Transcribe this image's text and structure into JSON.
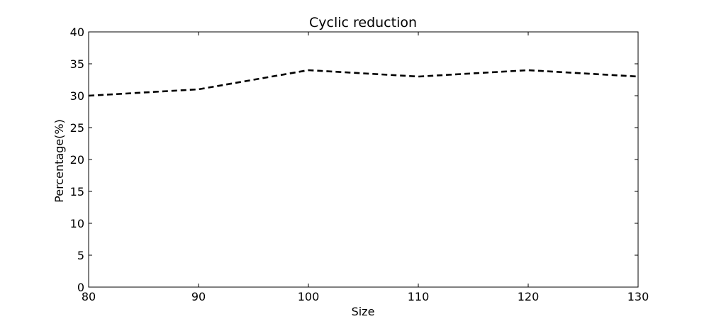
{
  "chart_data": {
    "type": "line",
    "title": "Cyclic reduction",
    "xlabel": "Size",
    "ylabel": "Percentage(%)",
    "xlim": [
      80,
      130
    ],
    "ylim": [
      0,
      40
    ],
    "xticks": [
      80,
      90,
      100,
      110,
      120,
      130
    ],
    "yticks": [
      0,
      5,
      10,
      15,
      20,
      25,
      30,
      35,
      40
    ],
    "grid": false,
    "legend": "none",
    "series": [
      {
        "line_style": "dashed",
        "color": "#000000",
        "x": [
          80,
          90,
          100,
          110,
          120,
          130
        ],
        "y": [
          30,
          31,
          34,
          33,
          34,
          33
        ]
      }
    ]
  }
}
